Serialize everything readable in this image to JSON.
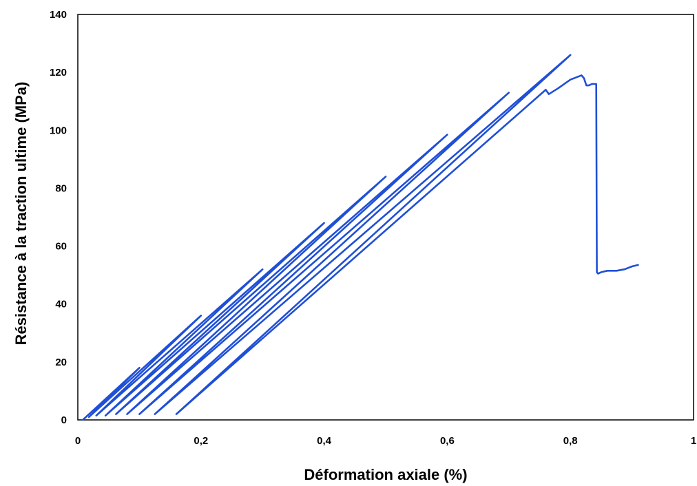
{
  "chart_data": {
    "type": "line",
    "title": "",
    "xlabel": "Déformation axiale (%)",
    "ylabel": "Résistance à la traction ultime (MPa)",
    "xlim": [
      0,
      1
    ],
    "ylim": [
      0,
      140
    ],
    "xticks": [
      0,
      0.2,
      0.4,
      0.6,
      0.8,
      1
    ],
    "xtick_labels": [
      "0",
      "0,2",
      "0,4",
      "0,6",
      "0,8",
      "1"
    ],
    "yticks": [
      0,
      20,
      40,
      60,
      80,
      100,
      120,
      140
    ],
    "ytick_labels": [
      "0",
      "20",
      "40",
      "60",
      "80",
      "100",
      "120",
      "140"
    ],
    "grid": false,
    "legend": null,
    "series": [
      {
        "color": "#1f4fd6",
        "x": [
          0.008,
          0.1,
          0.018,
          0.2,
          0.03,
          0.3,
          0.045,
          0.4,
          0.062,
          0.5,
          0.08,
          0.6,
          0.1,
          0.7,
          0.125,
          0.8,
          0.16,
          0.76,
          0.765,
          0.78,
          0.8,
          0.818,
          0.822,
          0.826,
          0.83,
          0.835,
          0.84,
          0.842,
          0.843,
          0.845,
          0.85,
          0.86,
          0.875,
          0.888,
          0.9,
          0.91
        ],
        "y": [
          0,
          18,
          1,
          36,
          1.5,
          52,
          1.5,
          68,
          2,
          84,
          2,
          98.5,
          2,
          113,
          2,
          126,
          2,
          114,
          112.5,
          114.5,
          117.5,
          119,
          118,
          115.5,
          115.5,
          116,
          116,
          116,
          51,
          50.5,
          51,
          51.5,
          51.5,
          52,
          53,
          53.5
        ]
      }
    ]
  }
}
